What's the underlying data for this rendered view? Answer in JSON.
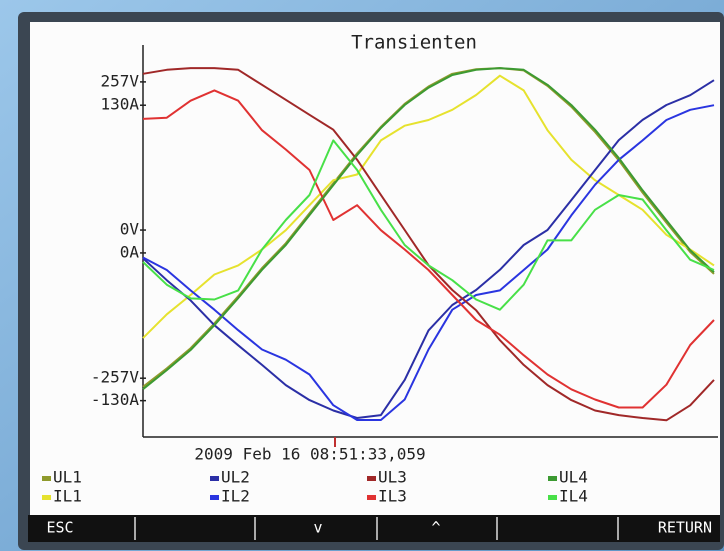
{
  "chart_data": {
    "type": "line",
    "title": "Transienten",
    "annotation": "2009 Feb 16 08:51:33,059",
    "ylim": [
      -359,
      321
    ],
    "yticks": [
      {
        "value": 257,
        "label": "257V"
      },
      {
        "value": 0,
        "label": "0V"
      },
      {
        "value": -257,
        "label": "-257V"
      }
    ],
    "y2lim": [
      -162,
      183
    ],
    "y2ticks": [
      {
        "value": 130,
        "label": "130A"
      },
      {
        "value": 0,
        "label": "0A"
      },
      {
        "value": -130,
        "label": "-130A"
      }
    ],
    "grid": false,
    "series": [
      {
        "name": "UL1",
        "color": "#8f9a2c",
        "values": [
          -272,
          -240,
          -205,
          -162,
          -115,
          -66,
          -23,
          29,
          81,
          133,
          179,
          219,
          249,
          271,
          279,
          281,
          277,
          250,
          214,
          170,
          121,
          65,
          13,
          -38,
          -76
        ]
      },
      {
        "name": "IL1",
        "color": "#e6e22e",
        "axis": "y2",
        "values": [
          -75,
          -54,
          -37,
          -19,
          -11,
          3,
          20,
          42,
          64,
          69,
          99,
          112,
          117,
          126,
          139,
          156,
          143,
          108,
          82,
          64,
          51,
          38,
          16,
          3,
          -11
        ]
      },
      {
        "name": "UL2",
        "color": "#2b2fa6",
        "values": [
          -49,
          -87,
          -122,
          -165,
          -200,
          -234,
          -269,
          -295,
          -313,
          -326,
          -321,
          -260,
          -174,
          -130,
          -104,
          -69,
          -26,
          0,
          52,
          104,
          156,
          191,
          217,
          234,
          260
        ]
      },
      {
        "name": "IL2",
        "color": "#2a35e0",
        "axis": "y2",
        "values": [
          -4,
          -15,
          -33,
          -50,
          -68,
          -85,
          -94,
          -107,
          -134,
          -147,
          -147,
          -129,
          -85,
          -50,
          -37,
          -33,
          -15,
          3,
          33,
          60,
          82,
          99,
          117,
          126,
          130
        ]
      },
      {
        "name": "UL3",
        "color": "#a02828",
        "values": [
          271,
          278,
          281,
          281,
          278,
          252,
          226,
          200,
          174,
          122,
          61,
          0,
          -61,
          -104,
          -139,
          -191,
          -234,
          -269,
          -295,
          -313,
          -321,
          -326,
          -330,
          -304,
          -260
        ]
      },
      {
        "name": "IL3",
        "color": "#e03232",
        "axis": "y2",
        "values": [
          118,
          119,
          134,
          143,
          134,
          108,
          91,
          73,
          29,
          42,
          20,
          3,
          -15,
          -37,
          -59,
          -72,
          -90,
          -107,
          -120,
          -129,
          -136,
          -136,
          -116,
          -81,
          -59
        ]
      },
      {
        "name": "UL4",
        "color": "#3c9a32",
        "values": [
          -276,
          -243,
          -208,
          -165,
          -118,
          -69,
          -26,
          26,
          78,
          130,
          177,
          217,
          247,
          269,
          278,
          281,
          278,
          252,
          217,
          174,
          125,
          69,
          17,
          -35,
          -73
        ]
      },
      {
        "name": "IL4",
        "color": "#48e048",
        "axis": "y2",
        "values": [
          -8,
          -28,
          -40,
          -41,
          -33,
          3,
          29,
          51,
          99,
          73,
          38,
          7,
          -11,
          -24,
          -41,
          -50,
          -28,
          11,
          11,
          38,
          51,
          47,
          20,
          -6,
          -15
        ]
      }
    ]
  },
  "softkeys": [
    "ESC",
    "v",
    "^",
    "RETURN"
  ]
}
